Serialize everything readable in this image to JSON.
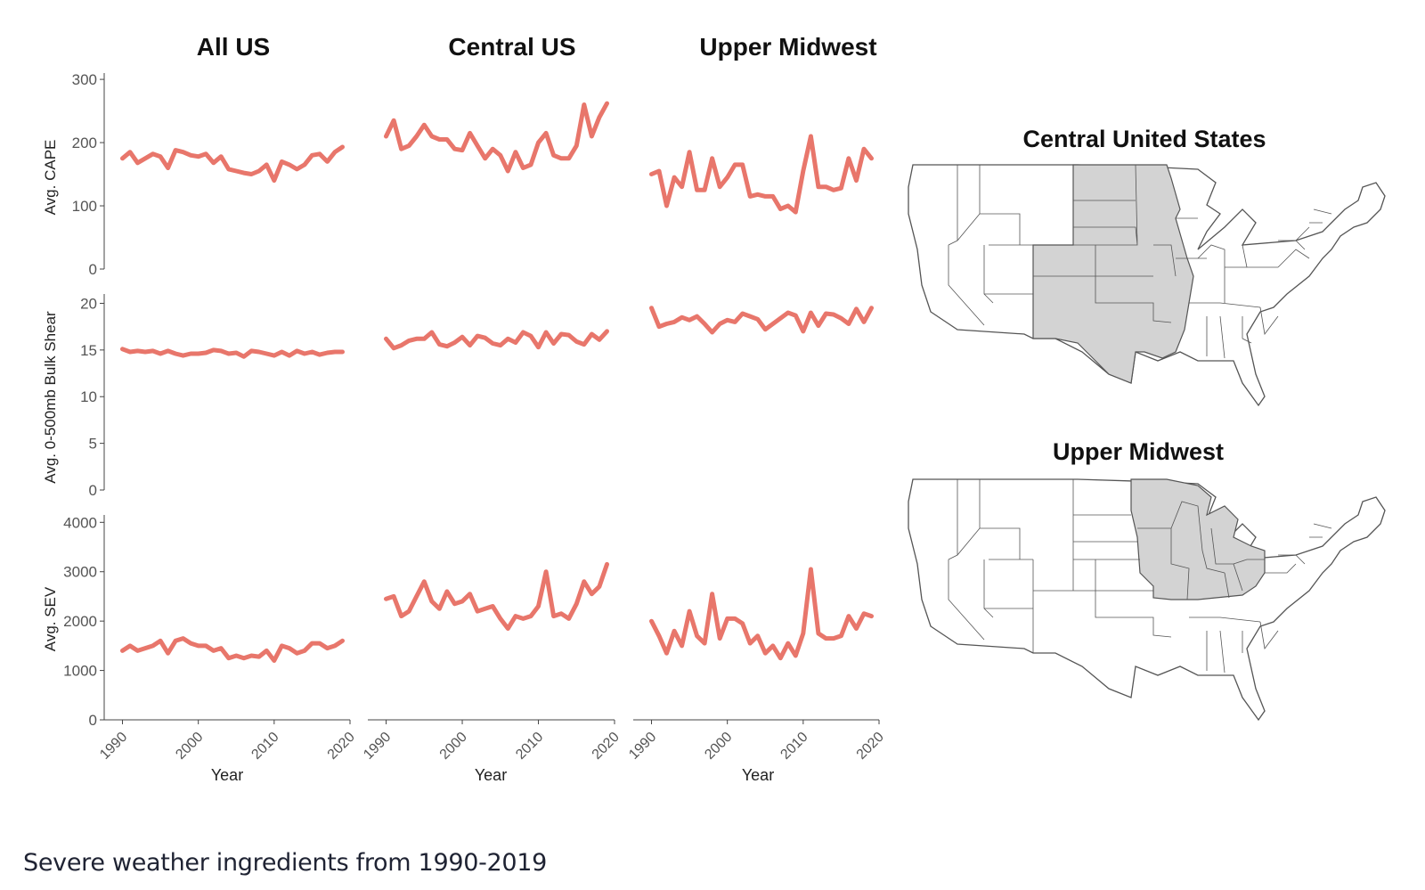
{
  "caption": "Severe weather ingredients from 1990-2019",
  "colors": {
    "line": "#e8766b",
    "axis": "#333333",
    "tick_text": "#555555",
    "shaded_state": "#d3d3d3",
    "state_border": "#555555"
  },
  "chart_data": {
    "type": "line",
    "facet_columns": [
      "All US",
      "Central US",
      "Upper Midwest"
    ],
    "xlabel": "Year",
    "x_ticks": [
      1990,
      2000,
      2010,
      2020
    ],
    "xlim": [
      1989,
      2020
    ],
    "years": [
      1990,
      1991,
      1992,
      1993,
      1994,
      1995,
      1996,
      1997,
      1998,
      1999,
      2000,
      2001,
      2002,
      2003,
      2004,
      2005,
      2006,
      2007,
      2008,
      2009,
      2010,
      2011,
      2012,
      2013,
      2014,
      2015,
      2016,
      2017,
      2018,
      2019
    ],
    "rows": [
      {
        "ylabel": "Avg. CAPE",
        "y_ticks": [
          0,
          100,
          200,
          300
        ],
        "ylim": [
          0,
          310
        ],
        "series": [
          [
            175,
            185,
            168,
            175,
            182,
            178,
            160,
            188,
            185,
            180,
            178,
            182,
            168,
            178,
            158,
            155,
            152,
            150,
            155,
            165,
            140,
            170,
            165,
            158,
            165,
            180,
            182,
            170,
            185,
            193
          ],
          [
            210,
            235,
            190,
            195,
            210,
            228,
            210,
            205,
            205,
            190,
            188,
            215,
            195,
            175,
            190,
            180,
            155,
            185,
            160,
            165,
            200,
            215,
            180,
            175,
            175,
            195,
            260,
            210,
            240,
            262
          ],
          [
            150,
            155,
            100,
            145,
            130,
            185,
            125,
            125,
            175,
            130,
            145,
            165,
            165,
            115,
            118,
            115,
            115,
            95,
            100,
            90,
            155,
            210,
            130,
            130,
            125,
            128,
            175,
            140,
            190,
            175
          ]
        ]
      },
      {
        "ylabel": "Avg. 0-500mb Bulk Shear",
        "y_ticks": [
          0,
          5,
          10,
          15,
          20
        ],
        "ylim": [
          0,
          21
        ],
        "series": [
          [
            15.1,
            14.8,
            14.9,
            14.8,
            14.9,
            14.6,
            14.9,
            14.6,
            14.4,
            14.6,
            14.6,
            14.7,
            15.0,
            14.9,
            14.6,
            14.7,
            14.3,
            14.9,
            14.8,
            14.6,
            14.4,
            14.8,
            14.4,
            14.9,
            14.6,
            14.8,
            14.5,
            14.7,
            14.8,
            14.8
          ],
          [
            16.2,
            15.2,
            15.5,
            16.0,
            16.2,
            16.2,
            16.9,
            15.6,
            15.4,
            15.8,
            16.4,
            15.5,
            16.5,
            16.3,
            15.7,
            15.5,
            16.2,
            15.8,
            16.9,
            16.5,
            15.3,
            16.9,
            15.7,
            16.7,
            16.6,
            15.9,
            15.6,
            16.7,
            16.1,
            17.0
          ],
          [
            19.5,
            17.5,
            17.8,
            18.0,
            18.5,
            18.2,
            18.6,
            17.8,
            16.9,
            17.8,
            18.2,
            18.0,
            18.9,
            18.6,
            18.3,
            17.2,
            17.8,
            18.4,
            19.0,
            18.7,
            17.0,
            19.0,
            17.6,
            18.9,
            18.8,
            18.4,
            17.8,
            19.4,
            18.0,
            19.5
          ]
        ]
      },
      {
        "ylabel": "Avg. SEV",
        "y_ticks": [
          0,
          1000,
          2000,
          3000,
          4000
        ],
        "ylim": [
          0,
          4150
        ],
        "series": [
          [
            1400,
            1500,
            1400,
            1450,
            1500,
            1600,
            1350,
            1600,
            1650,
            1550,
            1500,
            1500,
            1400,
            1450,
            1250,
            1300,
            1250,
            1300,
            1280,
            1400,
            1200,
            1500,
            1450,
            1350,
            1400,
            1550,
            1550,
            1450,
            1500,
            1600
          ],
          [
            2450,
            2500,
            2100,
            2200,
            2500,
            2800,
            2400,
            2250,
            2600,
            2350,
            2400,
            2550,
            2200,
            2250,
            2300,
            2050,
            1850,
            2100,
            2050,
            2100,
            2300,
            3000,
            2100,
            2150,
            2050,
            2350,
            2800,
            2550,
            2700,
            3150
          ],
          [
            2000,
            1700,
            1350,
            1800,
            1500,
            2200,
            1700,
            1550,
            2550,
            1650,
            2050,
            2050,
            1950,
            1550,
            1700,
            1350,
            1500,
            1250,
            1550,
            1300,
            1750,
            3050,
            1750,
            1650,
            1650,
            1700,
            2100,
            1850,
            2150,
            2100
          ]
        ]
      }
    ]
  },
  "maps": [
    {
      "title": "Central United States"
    },
    {
      "title": "Upper Midwest"
    }
  ]
}
